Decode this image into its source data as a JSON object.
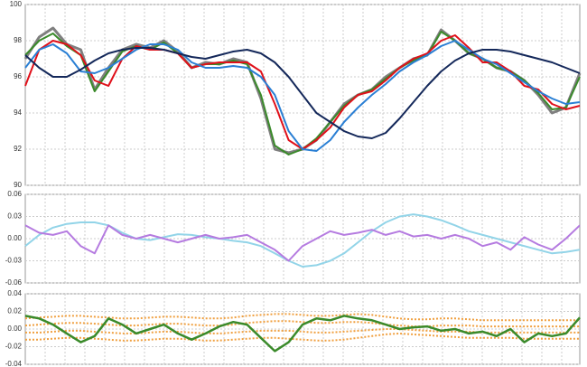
{
  "chart_data": [
    {
      "type": "line",
      "grid": true,
      "xlim": [
        0,
        40
      ],
      "ylim": [
        90,
        100
      ],
      "yticks": [
        90,
        92,
        94,
        96,
        98,
        100
      ],
      "x": [
        0,
        1,
        2,
        3,
        4,
        5,
        6,
        7,
        8,
        9,
        10,
        11,
        12,
        13,
        14,
        15,
        16,
        17,
        18,
        19,
        20,
        21,
        22,
        23,
        24,
        25,
        26,
        27,
        28,
        29,
        30,
        31,
        32,
        33,
        34,
        35,
        36,
        37,
        38,
        39,
        40
      ],
      "series": [
        {
          "color": "#7f7f7f",
          "width": 3,
          "values": [
            97,
            98.2,
            98.7,
            97.8,
            97.5,
            95.3,
            96.5,
            97.5,
            97.8,
            97.6,
            98,
            97.4,
            96.5,
            96.8,
            96.7,
            97,
            96.8,
            94.8,
            92,
            91.8,
            92,
            92.5,
            93.5,
            94.5,
            95,
            95.3,
            96,
            96.5,
            97,
            97.2,
            98.6,
            98,
            97.3,
            97,
            96.5,
            96.3,
            95.8,
            95,
            94,
            94.3,
            96.2
          ]
        },
        {
          "color": "#3a8a2a",
          "width": 2,
          "values": [
            97.2,
            98,
            98.4,
            97.7,
            97.2,
            95.2,
            96.3,
            97.4,
            97.7,
            97.5,
            97.9,
            97.3,
            96.5,
            96.7,
            96.7,
            96.9,
            96.7,
            95,
            92.2,
            91.7,
            92,
            92.6,
            93.5,
            94.4,
            95,
            95.3,
            95.9,
            96.5,
            96.9,
            97.2,
            98.5,
            98,
            97.3,
            97,
            96.5,
            96.3,
            95.8,
            95.1,
            94.2,
            94.3,
            96
          ]
        },
        {
          "color": "#e0101a",
          "width": 2,
          "values": [
            95.5,
            97.5,
            98,
            97.8,
            97.2,
            95.8,
            95.5,
            97,
            97.7,
            97.5,
            97.5,
            97.3,
            96.5,
            96.7,
            96.8,
            96.8,
            96.8,
            96.3,
            94.5,
            92.5,
            92,
            92.5,
            93.2,
            94.3,
            95,
            95.2,
            95.8,
            96.5,
            97,
            97.3,
            98,
            98.3,
            97.6,
            96.8,
            96.8,
            96.3,
            95.5,
            95.3,
            94.5,
            94.2,
            94.4
          ]
        },
        {
          "color": "#2a7fd4",
          "width": 2,
          "values": [
            96.5,
            97.5,
            97.8,
            97.3,
            96.3,
            96.2,
            96.5,
            97,
            97.5,
            97.8,
            97.8,
            97.5,
            96.8,
            96.5,
            96.5,
            96.6,
            96.5,
            96,
            95,
            93,
            92,
            91.9,
            92.5,
            93.5,
            94.3,
            95,
            95.6,
            96.3,
            96.8,
            97.2,
            97.7,
            98,
            97.5,
            97,
            96.7,
            96.2,
            95.7,
            95.2,
            94.8,
            94.5,
            94.6
          ]
        },
        {
          "color": "#14285a",
          "width": 2,
          "values": [
            97.2,
            96.5,
            96,
            96,
            96.4,
            96.9,
            97.3,
            97.5,
            97.6,
            97.6,
            97.5,
            97.3,
            97.1,
            97,
            97.2,
            97.4,
            97.5,
            97.3,
            96.8,
            96,
            95,
            94,
            93.5,
            93,
            92.7,
            92.6,
            92.9,
            93.7,
            94.6,
            95.5,
            96.3,
            96.9,
            97.3,
            97.5,
            97.5,
            97.4,
            97.2,
            97,
            96.8,
            96.5,
            96.2
          ]
        }
      ]
    },
    {
      "type": "line",
      "grid": true,
      "xlim": [
        0,
        40
      ],
      "ylim": [
        -0.06,
        0.06
      ],
      "yticks": [
        -0.06,
        -0.03,
        {
          "value": 0,
          "label": "0.00"
        },
        0.03,
        0.06
      ],
      "x": [
        0,
        1,
        2,
        3,
        4,
        5,
        6,
        7,
        8,
        9,
        10,
        11,
        12,
        13,
        14,
        15,
        16,
        17,
        18,
        19,
        20,
        21,
        22,
        23,
        24,
        25,
        26,
        27,
        28,
        29,
        30,
        31,
        32,
        33,
        34,
        35,
        36,
        37,
        38,
        39,
        40
      ],
      "series": [
        {
          "color": "#92d4e8",
          "width": 2,
          "values": [
            -0.01,
            0.005,
            0.015,
            0.02,
            0.022,
            0.022,
            0.018,
            0.008,
            0,
            -0.002,
            0.002,
            0.006,
            0.005,
            0.002,
            0,
            -0.003,
            -0.005,
            -0.01,
            -0.02,
            -0.03,
            -0.038,
            -0.036,
            -0.03,
            -0.02,
            -0.005,
            0.01,
            0.022,
            0.03,
            0.033,
            0.03,
            0.025,
            0.018,
            0.01,
            0.005,
            0,
            -0.005,
            -0.01,
            -0.015,
            -0.02,
            -0.018,
            -0.015
          ]
        },
        {
          "color": "#b57be0",
          "width": 2,
          "values": [
            0.018,
            0.008,
            0.005,
            0.01,
            -0.01,
            -0.02,
            0.018,
            0.005,
            0,
            0.005,
            0,
            -0.005,
            0,
            0.005,
            0,
            0.002,
            0.005,
            -0.005,
            -0.015,
            -0.03,
            -0.01,
            0,
            0.01,
            0.005,
            0.008,
            0.012,
            0.005,
            0.01,
            0.003,
            0.005,
            0,
            0.005,
            0,
            -0.01,
            -0.005,
            -0.015,
            0.002,
            -0.008,
            -0.015,
            0,
            0.018
          ]
        }
      ]
    },
    {
      "type": "line",
      "grid": true,
      "xlim": [
        0,
        40
      ],
      "ylim": [
        -0.04,
        0.04
      ],
      "yticks": [
        -0.04,
        -0.02,
        {
          "value": 0,
          "label": "0.00"
        },
        0.02,
        0.04
      ],
      "x": [
        0,
        1,
        2,
        3,
        4,
        5,
        6,
        7,
        8,
        9,
        10,
        11,
        12,
        13,
        14,
        15,
        16,
        17,
        18,
        19,
        20,
        21,
        22,
        23,
        24,
        25,
        26,
        27,
        28,
        29,
        30,
        31,
        32,
        33,
        34,
        35,
        36,
        37,
        38,
        39,
        40
      ],
      "series": [
        {
          "color": "#f0a040",
          "width": 2,
          "dash": true,
          "values": [
            0.012,
            0.013,
            0.014,
            0.015,
            0.015,
            0.014,
            0.013,
            0.012,
            0.012,
            0.013,
            0.014,
            0.014,
            0.013,
            0.012,
            0.012,
            0.013,
            0.015,
            0.016,
            0.017,
            0.017,
            0.016,
            0.015,
            0.015,
            0.016,
            0.017,
            0.016,
            0.014,
            0.012,
            0.011,
            0.011,
            0.012,
            0.012,
            0.011,
            0.01,
            0.01,
            0.01,
            0.01,
            0.01,
            0.01,
            0.01,
            0.01
          ]
        },
        {
          "color": "#f0a040",
          "width": 2,
          "dash": true,
          "values": [
            0.004,
            0.005,
            0.006,
            0.007,
            0.007,
            0.006,
            0.005,
            0.004,
            0.004,
            0.005,
            0.006,
            0.006,
            0.005,
            0.004,
            0.004,
            0.005,
            0.007,
            0.008,
            0.009,
            0.009,
            0.008,
            0.007,
            0.007,
            0.008,
            0.008,
            0.007,
            0.005,
            0.004,
            0.003,
            0.003,
            0.004,
            0.004,
            0.004,
            0.003,
            0.003,
            0.003,
            0.003,
            0.003,
            0.003,
            0.003,
            0.003
          ]
        },
        {
          "color": "#f0a040",
          "width": 2,
          "dash": true,
          "values": [
            -0.004,
            -0.004,
            -0.003,
            -0.002,
            -0.002,
            -0.003,
            -0.004,
            -0.005,
            -0.005,
            -0.004,
            -0.003,
            -0.003,
            -0.004,
            -0.005,
            -0.005,
            -0.004,
            -0.003,
            -0.002,
            -0.002,
            -0.002,
            -0.003,
            -0.004,
            -0.004,
            -0.003,
            -0.002,
            -0.001,
            0,
            0,
            -0.001,
            -0.002,
            -0.003,
            -0.003,
            -0.003,
            -0.004,
            -0.004,
            -0.004,
            -0.004,
            -0.004,
            -0.004,
            -0.004,
            -0.004
          ]
        },
        {
          "color": "#f0a040",
          "width": 2,
          "dash": true,
          "values": [
            -0.012,
            -0.012,
            -0.011,
            -0.01,
            -0.01,
            -0.011,
            -0.012,
            -0.013,
            -0.013,
            -0.012,
            -0.011,
            -0.011,
            -0.012,
            -0.013,
            -0.013,
            -0.012,
            -0.011,
            -0.01,
            -0.01,
            -0.011,
            -0.012,
            -0.013,
            -0.013,
            -0.012,
            -0.01,
            -0.008,
            -0.006,
            -0.005,
            -0.006,
            -0.007,
            -0.008,
            -0.009,
            -0.01,
            -0.01,
            -0.01,
            -0.01,
            -0.011,
            -0.011,
            -0.011,
            -0.011,
            -0.011
          ]
        },
        {
          "color": "#3a8a2a",
          "width": 2.5,
          "values": [
            0.015,
            0.012,
            0.005,
            -0.005,
            -0.015,
            -0.008,
            0.012,
            0.005,
            -0.005,
            0,
            0.005,
            -0.005,
            -0.012,
            -0.005,
            0.003,
            0.008,
            0.005,
            -0.01,
            -0.025,
            -0.015,
            0.005,
            0.012,
            0.01,
            0.015,
            0.012,
            0.01,
            0.005,
            0,
            0.002,
            0.003,
            -0.002,
            0,
            -0.005,
            -0.003,
            -0.008,
            0,
            -0.015,
            -0.005,
            -0.008,
            -0.005,
            0.013
          ]
        }
      ]
    }
  ]
}
